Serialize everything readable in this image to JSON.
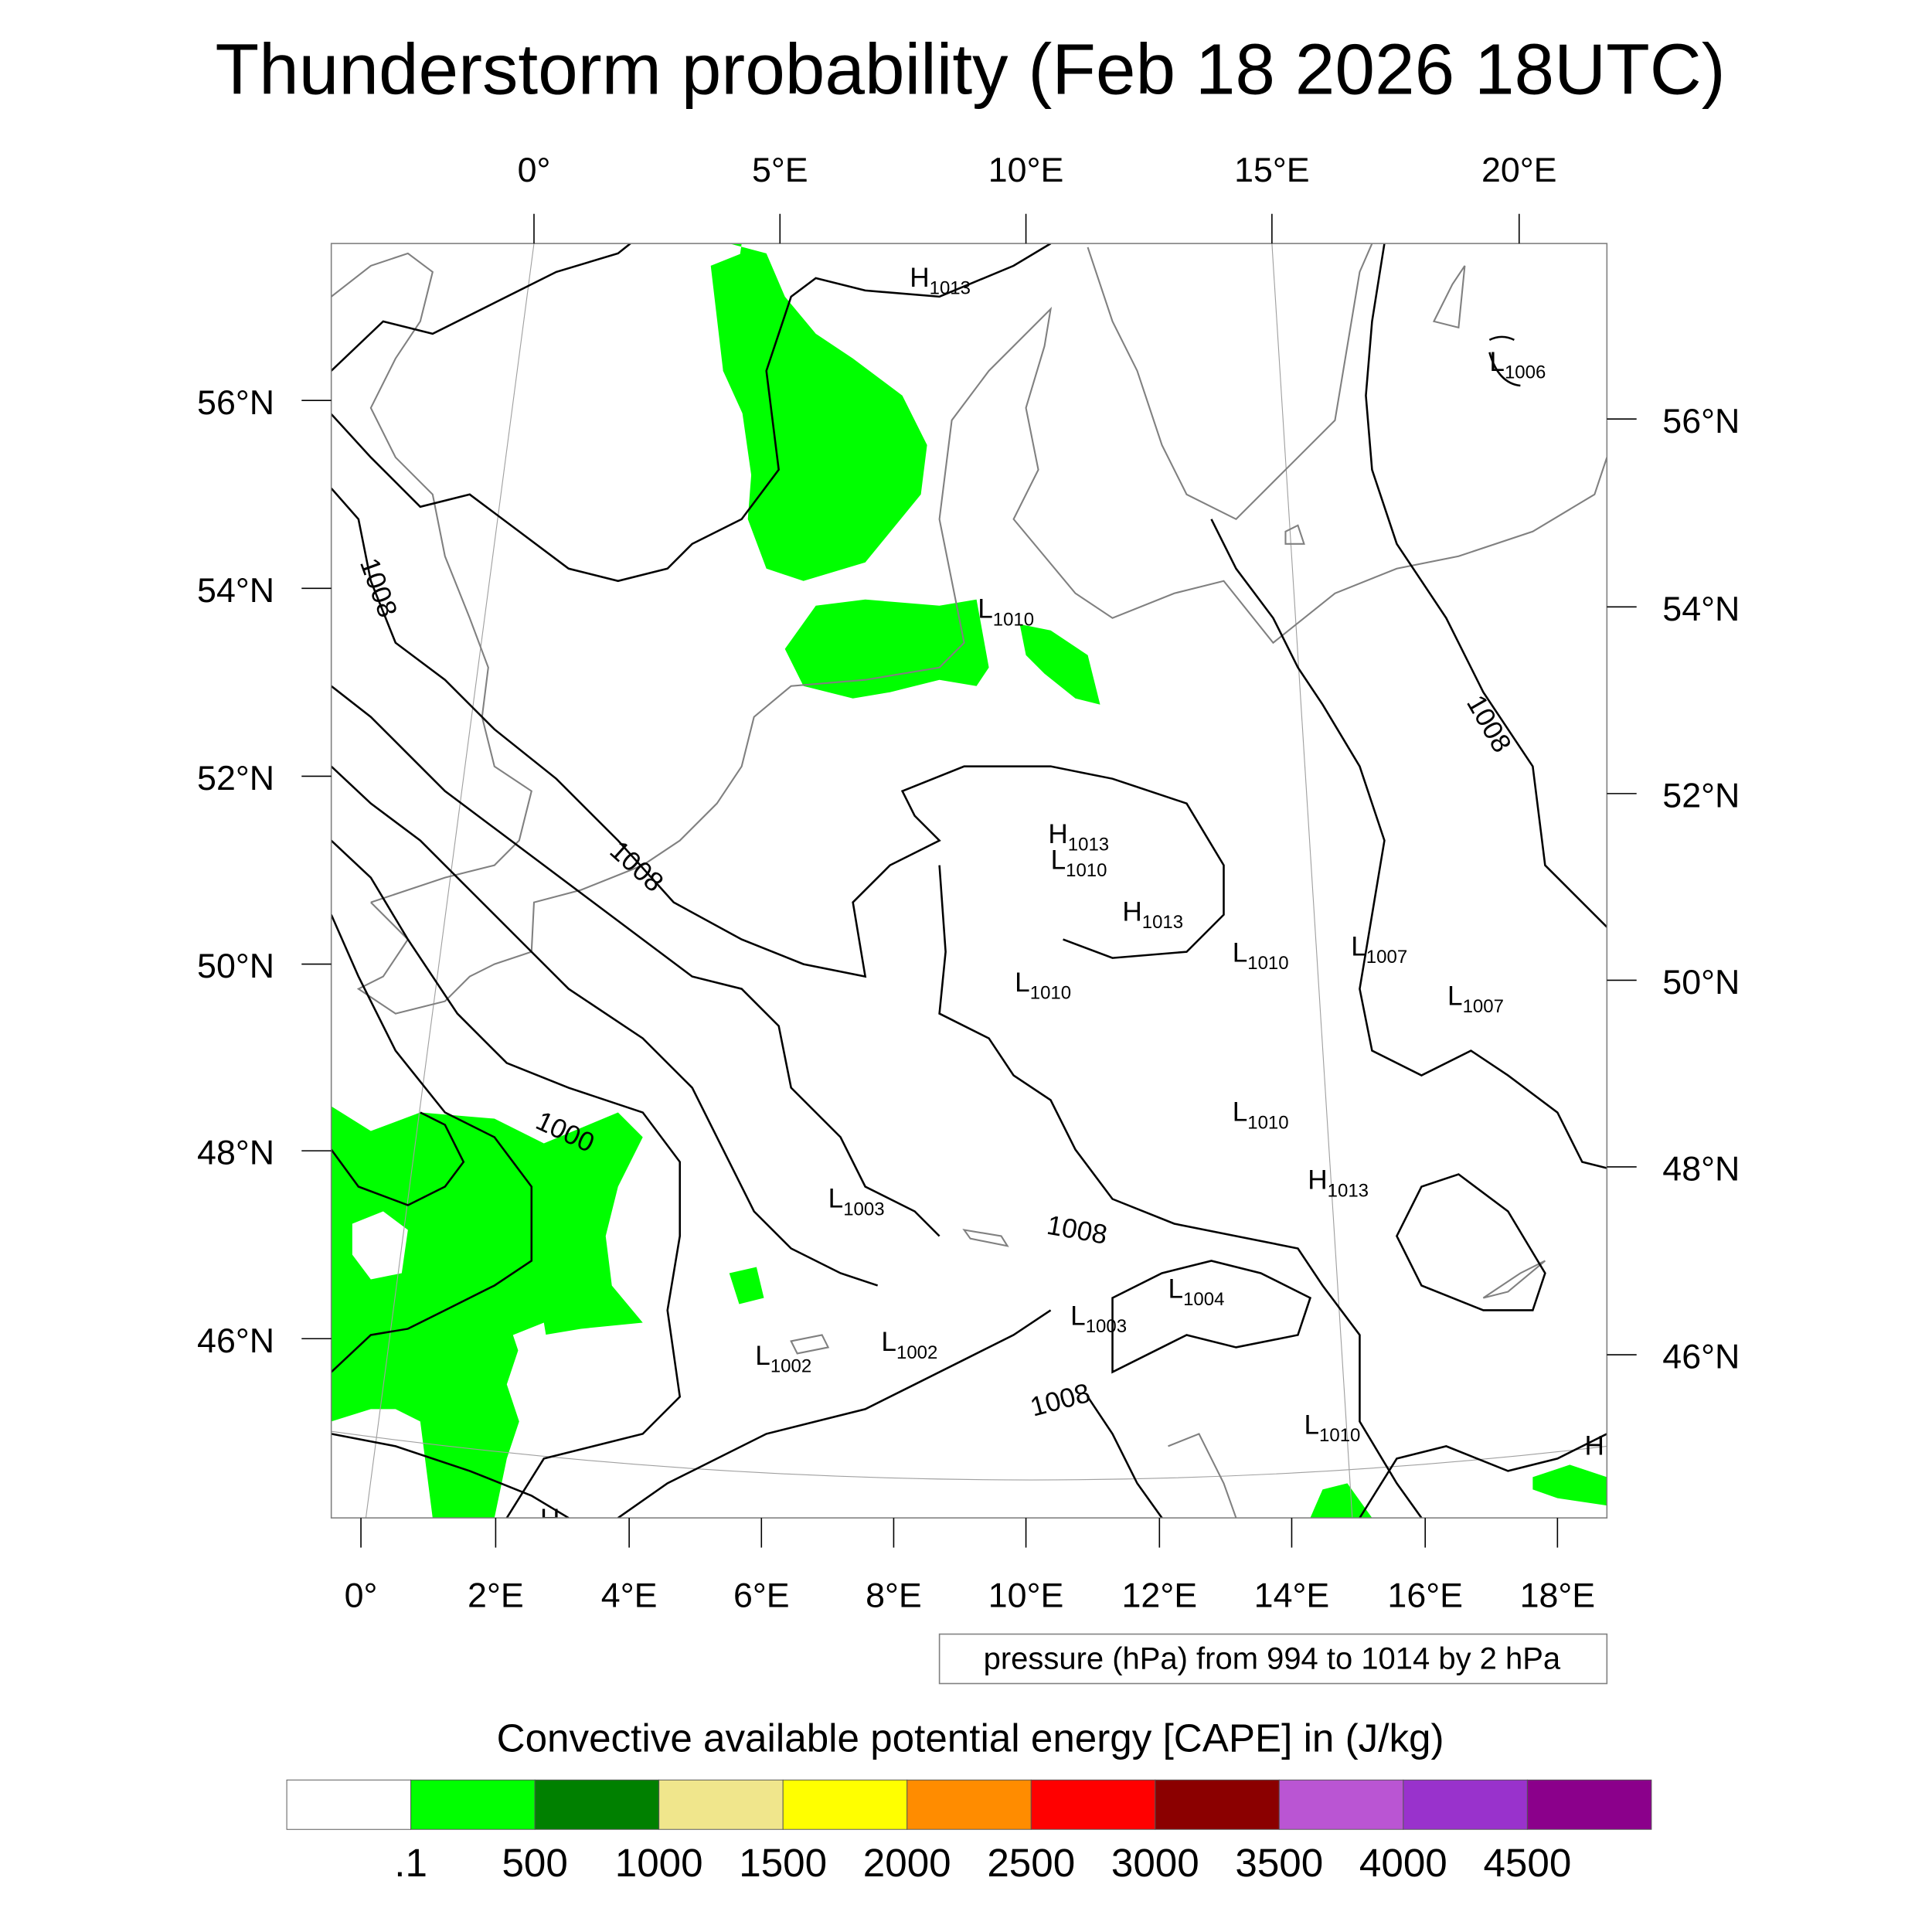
{
  "title": "Thunderstorm probability (Feb 18 2026 18UTC)",
  "chart_data": {
    "type": "map-contour-filled",
    "title": "Thunderstorm probability (Feb 18 2026 18UTC)",
    "top_lon_ticks": [
      "0°",
      "5°E",
      "10°E",
      "15°E",
      "20°E"
    ],
    "bottom_lon_ticks": [
      "0°",
      "2°E",
      "4°E",
      "6°E",
      "8°E",
      "10°E",
      "12°E",
      "14°E",
      "16°E",
      "18°E"
    ],
    "left_lat_ticks": [
      "56°N",
      "54°N",
      "52°N",
      "50°N",
      "48°N",
      "46°N"
    ],
    "right_lat_ticks": [
      "56°N",
      "54°N",
      "52°N",
      "50°N",
      "48°N",
      "46°N"
    ],
    "contour_info": "pressure (hPa) from 994 to 1014 by 2 hPa",
    "contour_labels": [
      "1008",
      "1008",
      "1008",
      "1000",
      "1008",
      "1008",
      "1008"
    ],
    "pressure_centers": [
      {
        "type": "H",
        "value": "1013"
      },
      {
        "type": "L",
        "value": "1006"
      },
      {
        "type": "L",
        "value": "1010"
      },
      {
        "type": "H",
        "value": "1013"
      },
      {
        "type": "L",
        "value": "1010"
      },
      {
        "type": "H",
        "value": "1013"
      },
      {
        "type": "L",
        "value": "1010"
      },
      {
        "type": "L",
        "value": "1007"
      },
      {
        "type": "L",
        "value": "1007"
      },
      {
        "type": "L",
        "value": "1010"
      },
      {
        "type": "L",
        "value": "1010"
      },
      {
        "type": "H",
        "value": "1013"
      },
      {
        "type": "L",
        "value": "1003"
      },
      {
        "type": "L",
        "value": "1004"
      },
      {
        "type": "L",
        "value": "1003"
      },
      {
        "type": "L",
        "value": "1002"
      },
      {
        "type": "L",
        "value": "1002"
      },
      {
        "type": "L",
        "value": "1010"
      },
      {
        "type": "H",
        "value": ""
      },
      {
        "type": "H",
        "value": ""
      }
    ],
    "colorbar": {
      "title": "Convective available potential energy [CAPE] in (J/kg)",
      "labels": [
        ".1",
        "500",
        "1000",
        "1500",
        "2000",
        "2500",
        "3000",
        "3500",
        "4000",
        "4500"
      ],
      "colors": [
        "#ffffff",
        "#00ff00",
        "#008000",
        "#f0e68c",
        "#ffff00",
        "#ff8c00",
        "#ff0000",
        "#8b0000",
        "#ba55d3",
        "#9932cc",
        "#8b008b"
      ]
    }
  }
}
